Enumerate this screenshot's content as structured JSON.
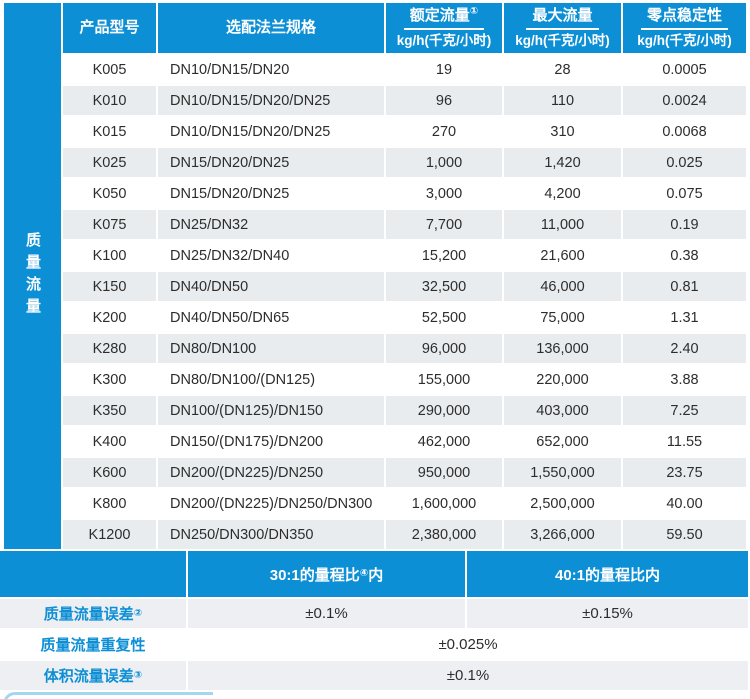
{
  "colors": {
    "accent_blue": "#0d8fd6",
    "stripe_gray": "#e9ecef",
    "accuracy_gray": "#edeff2",
    "decor_blue": "#a5d6f0"
  },
  "sidebar": {
    "label": "质量流量"
  },
  "table": {
    "headers": {
      "model": "产品型号",
      "flange": "选配法兰规格",
      "rated": {
        "title": "额定流量",
        "sup": "①",
        "unit": "kg/h(千克/小时)"
      },
      "max": {
        "title": "最大流量",
        "unit": "kg/h(千克/小时)"
      },
      "zero": {
        "title": "零点稳定性",
        "unit": "kg/h(千克/小时)"
      }
    },
    "rows": [
      {
        "model": "K005",
        "flange": "DN10/DN15/DN20",
        "rated": "19",
        "max": "28",
        "zero": "0.0005"
      },
      {
        "model": "K010",
        "flange": "DN10/DN15/DN20/DN25",
        "rated": "96",
        "max": "110",
        "zero": "0.0024"
      },
      {
        "model": "K015",
        "flange": "DN10/DN15/DN20/DN25",
        "rated": "270",
        "max": "310",
        "zero": "0.0068"
      },
      {
        "model": "K025",
        "flange": "DN15/DN20/DN25",
        "rated": "1,000",
        "max": "1,420",
        "zero": "0.025"
      },
      {
        "model": "K050",
        "flange": "DN15/DN20/DN25",
        "rated": "3,000",
        "max": "4,200",
        "zero": "0.075"
      },
      {
        "model": "K075",
        "flange": "DN25/DN32",
        "rated": "7,700",
        "max": "11,000",
        "zero": "0.19"
      },
      {
        "model": "K100",
        "flange": "DN25/DN32/DN40",
        "rated": "15,200",
        "max": "21,600",
        "zero": "0.38"
      },
      {
        "model": "K150",
        "flange": "DN40/DN50",
        "rated": "32,500",
        "max": "46,000",
        "zero": "0.81"
      },
      {
        "model": "K200",
        "flange": "DN40/DN50/DN65",
        "rated": "52,500",
        "max": "75,000",
        "zero": "1.31"
      },
      {
        "model": "K280",
        "flange": "DN80/DN100",
        "rated": "96,000",
        "max": "136,000",
        "zero": "2.40"
      },
      {
        "model": "K300",
        "flange": "DN80/DN100/(DN125)",
        "rated": "155,000",
        "max": "220,000",
        "zero": "3.88"
      },
      {
        "model": "K350",
        "flange": "DN100/(DN125)/DN150",
        "rated": "290,000",
        "max": "403,000",
        "zero": "7.25"
      },
      {
        "model": "K400",
        "flange": "DN150/(DN175)/DN200",
        "rated": "462,000",
        "max": "652,000",
        "zero": "11.55"
      },
      {
        "model": "K600",
        "flange": "DN200/(DN225)/DN250",
        "rated": "950,000",
        "max": "1,550,000",
        "zero": "23.75"
      },
      {
        "model": "K800",
        "flange": "DN200/(DN225)/DN250/DN300",
        "rated": "1,600,000",
        "max": "2,500,000",
        "zero": "40.00"
      },
      {
        "model": "K1200",
        "flange": "DN250/DN300/DN350",
        "rated": "2,380,000",
        "max": "3,266,000",
        "zero": "59.50"
      }
    ]
  },
  "accuracy": {
    "range30": {
      "pre": "30:1的量程比",
      "sup": "④",
      "post": "内"
    },
    "range40": {
      "pre": "40:1的量程比内"
    },
    "rows": [
      {
        "label": "质量流量误差",
        "sup": "②",
        "v1": "±0.1%",
        "v2": "±0.15%"
      },
      {
        "label": "质量流量重复性",
        "sup": "",
        "v1": "±0.025%"
      },
      {
        "label": "体积流量误差",
        "sup": "③",
        "v1": "±0.1%"
      }
    ]
  }
}
